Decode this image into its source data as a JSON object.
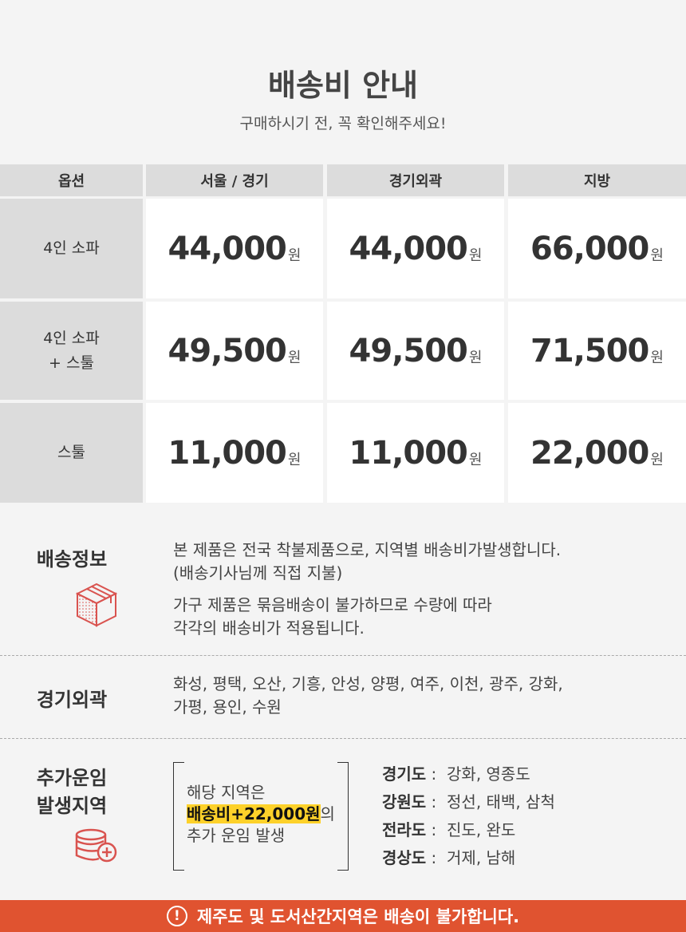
{
  "header": {
    "title": "배송비 안내",
    "subtitle": "구매하시기 전, 꼭 확인해주세요!"
  },
  "table": {
    "columns": [
      "옵션",
      "서울 / 경기",
      "경기외곽",
      "지방"
    ],
    "currency": "원",
    "rows": [
      {
        "option": [
          "4인 소파"
        ],
        "prices": [
          "44,000",
          "44,000",
          "66,000"
        ]
      },
      {
        "option": [
          "4인 소파",
          "+ 스툴"
        ],
        "prices": [
          "49,500",
          "49,500",
          "71,500"
        ]
      },
      {
        "option": [
          "스툴"
        ],
        "prices": [
          "11,000",
          "11,000",
          "22,000"
        ]
      }
    ]
  },
  "shipping_info": {
    "label": "배송정보",
    "icon": "box-icon",
    "lines1": [
      "본 제품은 전국 착불제품으로, 지역별 배송비가발생합니다.",
      "(배송기사님께 직접 지불)"
    ],
    "lines2": [
      "가구 제품은 묶음배송이 불가하므로 수량에 따라",
      "각각의 배송비가 적용됩니다."
    ]
  },
  "outskirts": {
    "label": "경기외곽",
    "lines": [
      "화성, 평택, 오산, 기흥, 안성, 양평, 여주, 이천, 광주, 강화,",
      "가평, 용인, 수원"
    ]
  },
  "extra": {
    "label": [
      "추가운임",
      "발생지역"
    ],
    "icon": "coins-plus-icon",
    "box_line1": "해당 지역은",
    "box_highlight": "배송비+22,000원",
    "box_suffix": "의",
    "box_line3": "추가 운임 발생",
    "regions": [
      {
        "province": "경기도",
        "areas": "강화, 영종도"
      },
      {
        "province": "강원도",
        "areas": "정선, 태백, 삼척"
      },
      {
        "province": "전라도",
        "areas": "진도, 완도"
      },
      {
        "province": "경상도",
        "areas": "거제, 남해"
      }
    ]
  },
  "notice": {
    "icon": "exclamation-circle-icon",
    "text": "제주도 및 도서산간지역은 배송이 불가합니다."
  },
  "colors": {
    "accent": "#e05330",
    "highlight": "#fdd12a",
    "icon_red": "#d9534f"
  }
}
